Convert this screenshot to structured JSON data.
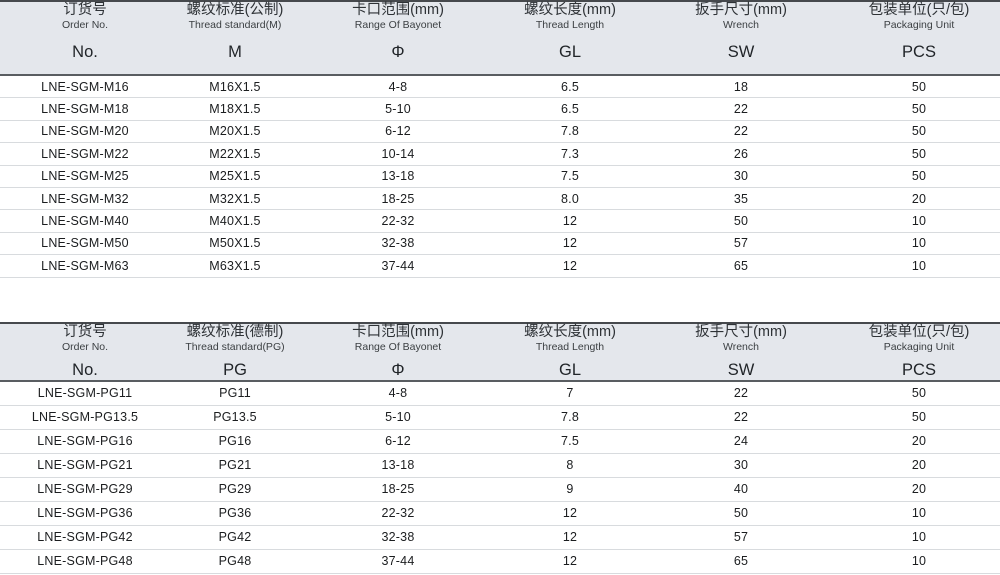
{
  "colors": {
    "header_background": "#e4e7ec",
    "header_top_border": "#46494d",
    "header_bottom_border": "#595d61",
    "row_separator": "#d8dbde",
    "data_text": "#1b1d1f",
    "header_text": "#2e3236"
  },
  "tables": [
    {
      "id": "metric",
      "columns": [
        {
          "cn": "订货号",
          "en": "Order No.",
          "symbol": "No."
        },
        {
          "cn": "螺纹标准(公制)",
          "en": "Thread standard(M)",
          "symbol": "M"
        },
        {
          "cn": "卡口范围(mm)",
          "en": "Range Of Bayonet",
          "symbol": "Φ"
        },
        {
          "cn": "螺纹长度(mm)",
          "en": "Thread Length",
          "symbol": "GL"
        },
        {
          "cn": "扳手尺寸(mm)",
          "en": "Wrench",
          "symbol": "SW"
        },
        {
          "cn": "包装单位(只/包)",
          "en": "Packaging Unit",
          "symbol": "PCS"
        }
      ],
      "rows": [
        [
          "LNE-SGM-M16",
          "M16X1.5",
          "4-8",
          "6.5",
          "18",
          "50"
        ],
        [
          "LNE-SGM-M18",
          "M18X1.5",
          "5-10",
          "6.5",
          "22",
          "50"
        ],
        [
          "LNE-SGM-M20",
          "M20X1.5",
          "6-12",
          "7.8",
          "22",
          "50"
        ],
        [
          "LNE-SGM-M22",
          "M22X1.5",
          "10-14",
          "7.3",
          "26",
          "50"
        ],
        [
          "LNE-SGM-M25",
          "M25X1.5",
          "13-18",
          "7.5",
          "30",
          "50"
        ],
        [
          "LNE-SGM-M32",
          "M32X1.5",
          "18-25",
          "8.0",
          "35",
          "20"
        ],
        [
          "LNE-SGM-M40",
          "M40X1.5",
          "22-32",
          "12",
          "50",
          "10"
        ],
        [
          "LNE-SGM-M50",
          "M50X1.5",
          "32-38",
          "12",
          "57",
          "10"
        ],
        [
          "LNE-SGM-M63",
          "M63X1.5",
          "37-44",
          "12",
          "65",
          "10"
        ]
      ]
    },
    {
      "id": "pg",
      "columns": [
        {
          "cn": "订货号",
          "en": "Order No.",
          "symbol": "No."
        },
        {
          "cn": "螺纹标准(德制)",
          "en": "Thread standard(PG)",
          "symbol": "PG"
        },
        {
          "cn": "卡口范围(mm)",
          "en": "Range Of Bayonet",
          "symbol": "Φ"
        },
        {
          "cn": "螺纹长度(mm)",
          "en": "Thread Length",
          "symbol": "GL"
        },
        {
          "cn": "扳手尺寸(mm)",
          "en": "Wrench",
          "symbol": "SW"
        },
        {
          "cn": "包装单位(只/包)",
          "en": "Packaging Unit",
          "symbol": "PCS"
        }
      ],
      "rows": [
        [
          "LNE-SGM-PG11",
          "PG11",
          "4-8",
          "7",
          "22",
          "50"
        ],
        [
          "LNE-SGM-PG13.5",
          "PG13.5",
          "5-10",
          "7.8",
          "22",
          "50"
        ],
        [
          "LNE-SGM-PG16",
          "PG16",
          "6-12",
          "7.5",
          "24",
          "20"
        ],
        [
          "LNE-SGM-PG21",
          "PG21",
          "13-18",
          "8",
          "30",
          "20"
        ],
        [
          "LNE-SGM-PG29",
          "PG29",
          "18-25",
          "9",
          "40",
          "20"
        ],
        [
          "LNE-SGM-PG36",
          "PG36",
          "22-32",
          "12",
          "50",
          "10"
        ],
        [
          "LNE-SGM-PG42",
          "PG42",
          "32-38",
          "12",
          "57",
          "10"
        ],
        [
          "LNE-SGM-PG48",
          "PG48",
          "37-44",
          "12",
          "65",
          "10"
        ]
      ]
    }
  ]
}
